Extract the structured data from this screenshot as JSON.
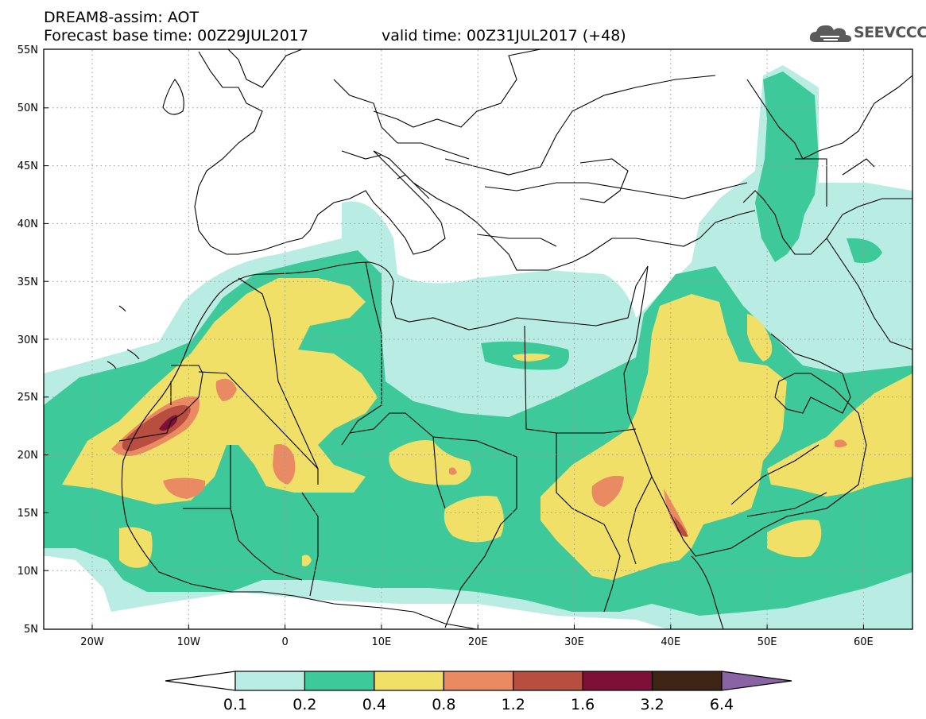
{
  "header": {
    "line1": "DREAM8-assim: AOT",
    "line2": "Forecast base time: 00Z29JUL2017",
    "line3": "valid time: 00Z31JUL2017 (+48)"
  },
  "logo": {
    "text": "SEEVCCC",
    "icon": "cloud-icon"
  },
  "map": {
    "lat_ticks": [
      "55N",
      "50N",
      "45N",
      "40N",
      "35N",
      "30N",
      "25N",
      "20N",
      "15N",
      "10N",
      "5N"
    ],
    "lon_ticks": [
      "20W",
      "10W",
      "0",
      "10E",
      "20E",
      "30E",
      "40E",
      "50E",
      "60E"
    ]
  },
  "colorbar": {
    "labels": [
      "0.1",
      "0.2",
      "0.4",
      "0.8",
      "1.2",
      "1.6",
      "3.2",
      "6.4"
    ],
    "colors": [
      "#b9ede3",
      "#3ec99a",
      "#f1e068",
      "#ea8a63",
      "#b84e3f",
      "#7e1037",
      "#3d2414",
      "#8a63a5"
    ]
  },
  "palette": {
    "c1": "#b9ede3",
    "c2": "#3ec99a",
    "c3": "#f1e068",
    "c4": "#ea8a63",
    "c5": "#b84e3f",
    "c6": "#7e1037"
  }
}
